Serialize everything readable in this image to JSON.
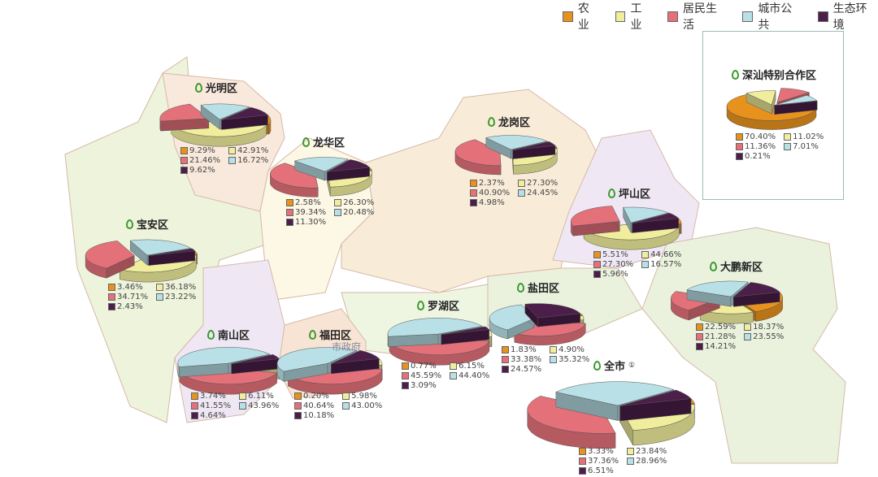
{
  "legend": {
    "categories": [
      "农业",
      "工业",
      "居民生活",
      "城市公共",
      "生态环境"
    ],
    "colors": [
      "#e8921e",
      "#f0ee9c",
      "#e4717a",
      "#b8e0e6",
      "#4b1f4a"
    ]
  },
  "districts": [
    {
      "name": "光明区",
      "values": [
        "9.29%",
        "42.91%",
        "21.46%",
        "16.72%",
        "9.62%"
      ]
    },
    {
      "name": "龙华区",
      "values": [
        "2.58%",
        "26.30%",
        "39.34%",
        "20.48%",
        "11.30%"
      ]
    },
    {
      "name": "龙岗区",
      "values": [
        "2.37%",
        "27.30%",
        "40.90%",
        "24.45%",
        "4.98%"
      ]
    },
    {
      "name": "坪山区",
      "values": [
        "5.51%",
        "44.66%",
        "27.30%",
        "16.57%",
        "5.96%"
      ]
    },
    {
      "name": "深汕特别合作区",
      "values": [
        "70.40%",
        "11.02%",
        "11.36%",
        "7.01%",
        "0.21%"
      ]
    },
    {
      "name": "宝安区",
      "values": [
        "3.46%",
        "36.18%",
        "34.71%",
        "23.22%",
        "2.43%"
      ]
    },
    {
      "name": "大鹏新区",
      "values": [
        "22.59%",
        "18.37%",
        "21.28%",
        "23.55%",
        "14.21%"
      ]
    },
    {
      "name": "盐田区",
      "values": [
        "1.83%",
        "4.90%",
        "33.38%",
        "35.32%",
        "24.57%"
      ]
    },
    {
      "name": "罗湖区",
      "values": [
        "0.77%",
        "6.15%",
        "45.59%",
        "44.40%",
        "3.09%"
      ]
    },
    {
      "name": "南山区",
      "values": [
        "3.74%",
        "6.11%",
        "41.55%",
        "43.96%",
        "4.64%"
      ]
    },
    {
      "name": "福田区",
      "values": [
        "0.20%",
        "5.98%",
        "40.64%",
        "43.00%",
        "10.18%"
      ]
    },
    {
      "name": "全市",
      "note": "①",
      "values": [
        "3.33%",
        "23.84%",
        "37.36%",
        "28.96%",
        "6.51%"
      ]
    }
  ],
  "map_labels": {
    "city_gov": "市政府"
  }
}
